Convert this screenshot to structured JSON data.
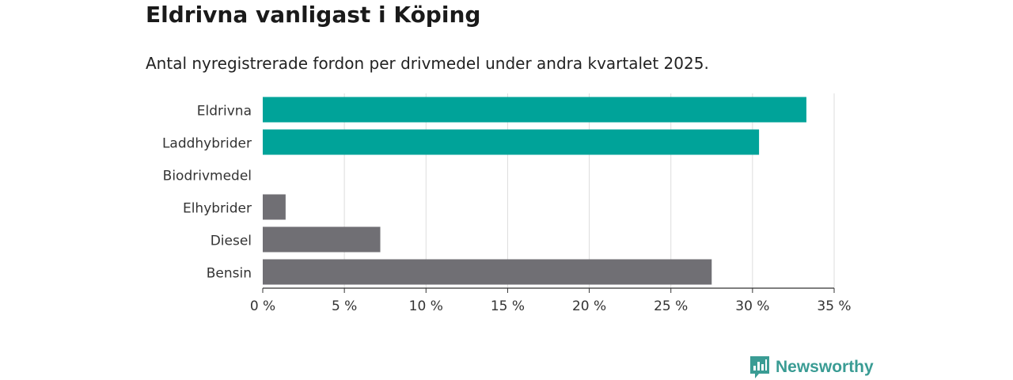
{
  "header": {
    "title": "Eldrivna vanligast i Köping",
    "subtitle": "Antal nyregistrerade fordon per drivmedel under andra kvartalet 2025."
  },
  "brand": {
    "name": "Newsworthy",
    "icon": "newsworthy-logo-icon",
    "color": "#3a9c94"
  },
  "chart_data": {
    "type": "bar",
    "orientation": "horizontal",
    "categories": [
      "Eldrivna",
      "Laddhybrider",
      "Biodrivmedel",
      "Elhybrider",
      "Diesel",
      "Bensin"
    ],
    "values": [
      33.3,
      30.4,
      0,
      1.4,
      7.2,
      27.5
    ],
    "colors": [
      "#00a399",
      "#00a399",
      "#706f74",
      "#706f74",
      "#706f74",
      "#706f74"
    ],
    "x_ticks": [
      0,
      5,
      10,
      15,
      20,
      25,
      30,
      35
    ],
    "x_tick_labels": [
      "0 %",
      "5 %",
      "10 %",
      "15 %",
      "20 %",
      "25 %",
      "30 %",
      "35 %"
    ],
    "xlim": [
      0,
      35
    ],
    "grid": true,
    "legend": false
  }
}
